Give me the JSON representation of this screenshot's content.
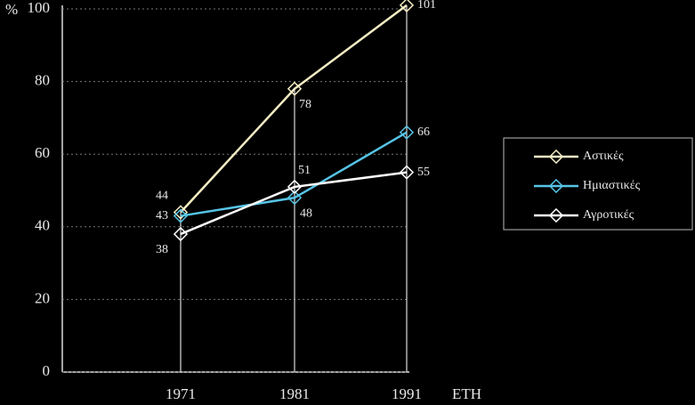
{
  "chart_data": {
    "type": "line",
    "y_label": "%",
    "x_label": "ΕΤΗ",
    "categories": [
      "1971",
      "1981",
      "1991"
    ],
    "series": [
      {
        "name": "Αστικές",
        "color": "#f3ecc4",
        "values": [
          44,
          78,
          101
        ]
      },
      {
        "name": "Ημιαστικές",
        "color": "#56c4e6",
        "values": [
          43,
          48,
          66
        ]
      },
      {
        "name": "Αγροτικές",
        "color": "#ffffff",
        "values": [
          38,
          51,
          55
        ]
      }
    ],
    "ylim": [
      0,
      100
    ],
    "yticks": [
      0,
      20,
      40,
      60,
      80,
      100
    ],
    "grid": true,
    "legend": "right"
  }
}
